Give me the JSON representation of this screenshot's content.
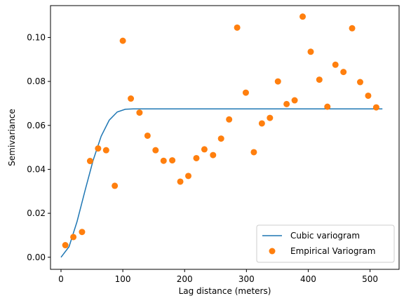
{
  "chart_data": {
    "type": "scatter",
    "title": "",
    "xlabel": "Lag distance (meters)",
    "ylabel": "Semivariance",
    "xlim": [
      -17,
      547
    ],
    "ylim": [
      -0.0055,
      0.1145
    ],
    "xticks": [
      0,
      100,
      200,
      300,
      400,
      500
    ],
    "yticks": [
      0.0,
      0.02,
      0.04,
      0.06,
      0.08,
      0.1
    ],
    "xtick_labels": [
      "0",
      "100",
      "200",
      "300",
      "400",
      "500"
    ],
    "ytick_labels": [
      "0.00",
      "0.02",
      "0.04",
      "0.06",
      "0.08",
      "0.10"
    ],
    "grid": false,
    "legend_position": "lower-right",
    "series": [
      {
        "name": "Cubic variogram",
        "kind": "line",
        "color": "#1f77b4",
        "model": "cubic",
        "nugget": 0.0,
        "sill": 0.0675,
        "range": 120,
        "x_max": 520
      },
      {
        "name": "Empirical Variogram",
        "kind": "scatter",
        "color": "#ff7f0e",
        "points": [
          [
            7,
            0.0055
          ],
          [
            20,
            0.0092
          ],
          [
            34,
            0.0115
          ],
          [
            47,
            0.0438
          ],
          [
            60,
            0.0495
          ],
          [
            73,
            0.0487
          ],
          [
            87,
            0.0325
          ],
          [
            100,
            0.0985
          ],
          [
            113,
            0.0722
          ],
          [
            127,
            0.0658
          ],
          [
            140,
            0.0553
          ],
          [
            153,
            0.0487
          ],
          [
            166,
            0.0439
          ],
          [
            180,
            0.0441
          ],
          [
            193,
            0.0344
          ],
          [
            206,
            0.037
          ],
          [
            219,
            0.0451
          ],
          [
            232,
            0.0491
          ],
          [
            246,
            0.0465
          ],
          [
            259,
            0.054
          ],
          [
            272,
            0.0627
          ],
          [
            285,
            0.1045
          ],
          [
            299,
            0.0749
          ],
          [
            312,
            0.0478
          ],
          [
            325,
            0.0609
          ],
          [
            338,
            0.0634
          ],
          [
            351,
            0.08
          ],
          [
            365,
            0.0697
          ],
          [
            378,
            0.0714
          ],
          [
            391,
            0.1095
          ],
          [
            404,
            0.0935
          ],
          [
            418,
            0.0808
          ],
          [
            431,
            0.0685
          ],
          [
            444,
            0.0876
          ],
          [
            457,
            0.0843
          ],
          [
            471,
            0.1042
          ],
          [
            484,
            0.0797
          ],
          [
            497,
            0.0735
          ],
          [
            510,
            0.0682
          ]
        ]
      }
    ]
  }
}
